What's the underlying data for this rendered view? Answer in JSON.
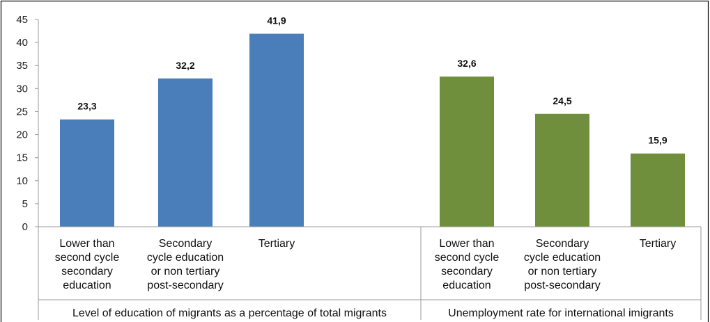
{
  "chart_data": {
    "type": "bar",
    "ylim": [
      0,
      45
    ],
    "yticks": [
      "0",
      "5",
      "10",
      "15",
      "20",
      "25",
      "30",
      "35",
      "40",
      "45"
    ],
    "grid": false,
    "groups": [
      {
        "label": "Level of education of migrants as a percentage of total migrants",
        "color": "#4a7ebb",
        "categories": [
          [
            "Lower than",
            "second cycle",
            "secondary",
            "education"
          ],
          [
            "Secondary",
            "cycle education",
            "or non tertiary",
            "post-secondary"
          ],
          [
            "Tertiary"
          ]
        ],
        "values": [
          23.3,
          32.2,
          41.9
        ],
        "value_labels": [
          "23,3",
          "32,2",
          "41,9"
        ]
      },
      {
        "label": "Unemployment rate for international imigrants",
        "color": "#6f8f3c",
        "categories": [
          [
            "Lower than",
            "second cycle",
            "secondary",
            "education"
          ],
          [
            "Secondary",
            "cycle education",
            "or non tertiary",
            "post-secondary"
          ],
          [
            "Tertiary"
          ]
        ],
        "values": [
          32.6,
          24.5,
          15.9
        ],
        "value_labels": [
          "32,6",
          "24,5",
          "15,9"
        ]
      }
    ]
  }
}
